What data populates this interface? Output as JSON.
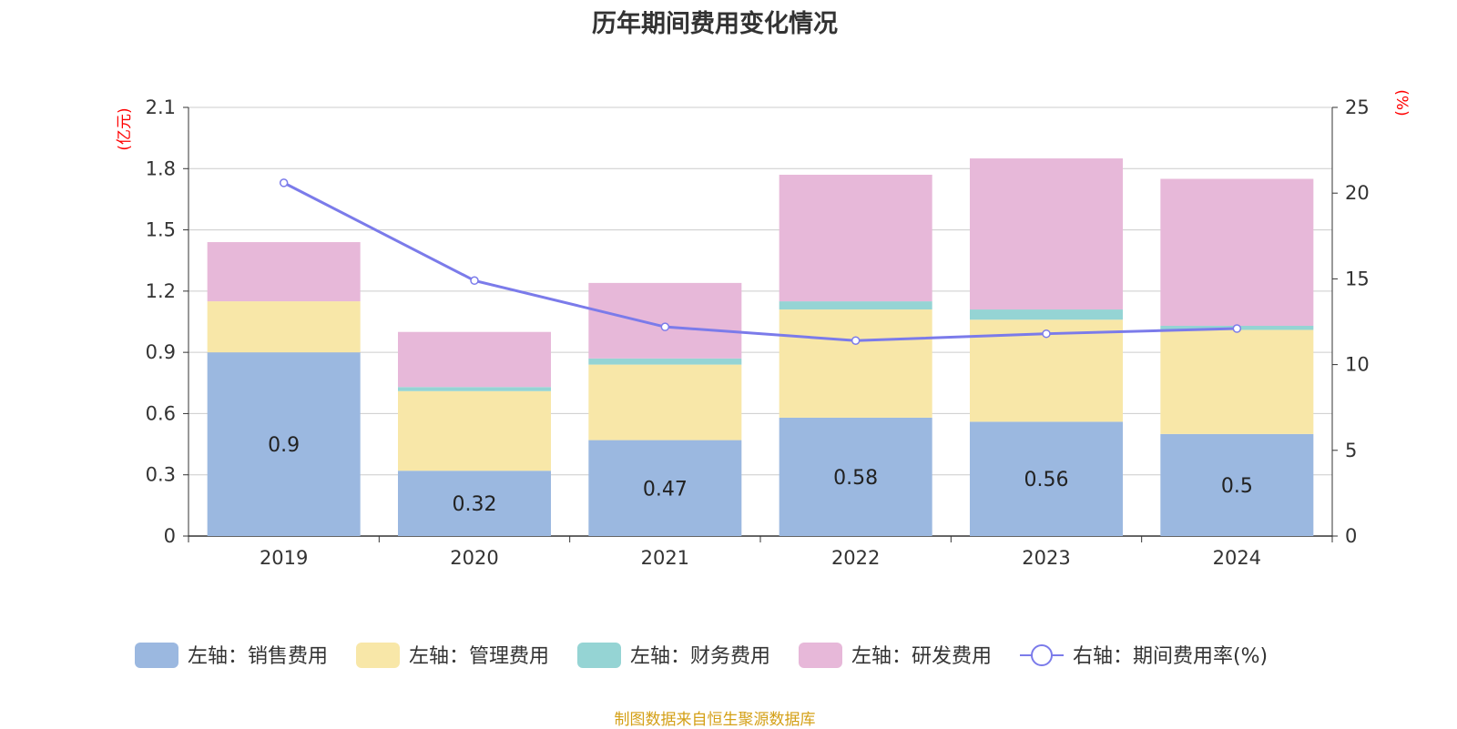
{
  "title": "历年期间费用变化情况",
  "source": "制图数据来自恒生聚源数据库",
  "colors": {
    "sales": "#9bb8e0",
    "admin": "#f8e7a8",
    "finance": "#95d4d4",
    "rnd": "#e7b8d9",
    "line": "#7b7bea",
    "axis_unit": "#ff0000",
    "grid": "#cccccc",
    "text": "#333333"
  },
  "chart_data": {
    "type": "bar",
    "stacked": true,
    "categories": [
      "2019",
      "2020",
      "2021",
      "2022",
      "2023",
      "2024"
    ],
    "left_axis": {
      "unit_label": "(亿元)",
      "range": [
        0,
        2.1
      ],
      "ticks": [
        "0",
        "0.3",
        "0.6",
        "0.9",
        "1.2",
        "1.5",
        "1.8",
        "2.1"
      ]
    },
    "right_axis": {
      "unit_label": "(%)",
      "range": [
        0,
        25
      ],
      "ticks": [
        "0",
        "5",
        "10",
        "15",
        "20",
        "25"
      ]
    },
    "grid": true,
    "legend_position": "bottom",
    "series": [
      {
        "name": "左轴：销售费用",
        "key": "sales",
        "axis": "left",
        "values": [
          0.9,
          0.32,
          0.47,
          0.58,
          0.56,
          0.5
        ],
        "labels": [
          "0.9",
          "0.32",
          "0.47",
          "0.58",
          "0.56",
          "0.5"
        ]
      },
      {
        "name": "左轴：管理费用",
        "key": "admin",
        "axis": "left",
        "values": [
          0.25,
          0.39,
          0.37,
          0.53,
          0.5,
          0.51
        ]
      },
      {
        "name": "左轴：财务费用",
        "key": "finance",
        "axis": "left",
        "values": [
          0.0,
          0.02,
          0.03,
          0.04,
          0.05,
          0.02
        ]
      },
      {
        "name": "左轴：研发费用",
        "key": "rnd",
        "axis": "left",
        "values": [
          0.29,
          0.27,
          0.37,
          0.62,
          0.74,
          0.72
        ]
      },
      {
        "name": "右轴：期间费用率(%)",
        "key": "line",
        "axis": "right",
        "type": "line",
        "values": [
          20.6,
          14.9,
          12.2,
          11.4,
          11.8,
          12.1
        ]
      }
    ]
  }
}
